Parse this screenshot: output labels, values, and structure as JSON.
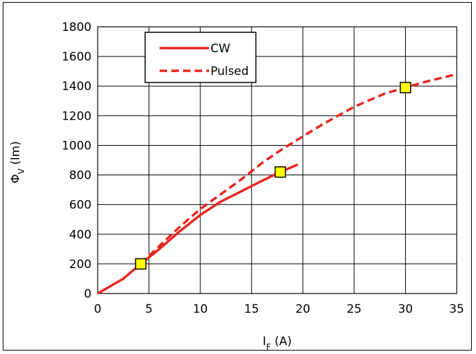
{
  "chart_data": {
    "type": "line",
    "title": "",
    "xlabel": {
      "main": "I",
      "sub": "F",
      "unit": " (A)"
    },
    "ylabel": {
      "main": "Φ",
      "sub": "V",
      "unit": " (lm)"
    },
    "xlim": [
      0,
      35
    ],
    "ylim": [
      0,
      1800
    ],
    "xticks": [
      0,
      5,
      10,
      15,
      20,
      25,
      30,
      35
    ],
    "yticks": [
      0,
      200,
      400,
      600,
      800,
      1000,
      1200,
      1400,
      1600,
      1800
    ],
    "grid": true,
    "legend_position": "top-left",
    "series": [
      {
        "name": "CW",
        "style": "solid",
        "color": "#e8251e",
        "x": [
          0,
          2.5,
          4.2,
          6,
          8,
          10,
          12,
          14,
          16,
          17.8,
          19.5
        ],
        "y": [
          0,
          100,
          200,
          300,
          420,
          530,
          620,
          690,
          760,
          820,
          870
        ]
      },
      {
        "name": "Pulsed",
        "style": "dashed",
        "color": "#e8251e",
        "x": [
          4.2,
          6,
          8,
          10,
          12,
          14,
          16,
          18,
          20,
          22,
          25,
          28,
          30,
          32,
          35
        ],
        "y": [
          200,
          320,
          450,
          570,
          670,
          770,
          880,
          975,
          1060,
          1145,
          1260,
          1350,
          1390,
          1430,
          1480
        ]
      }
    ],
    "markers": {
      "color": "#ffff00",
      "stroke": "#000000",
      "points": [
        {
          "x": 4.2,
          "y": 200
        },
        {
          "x": 17.8,
          "y": 820
        },
        {
          "x": 30,
          "y": 1390
        }
      ]
    }
  }
}
